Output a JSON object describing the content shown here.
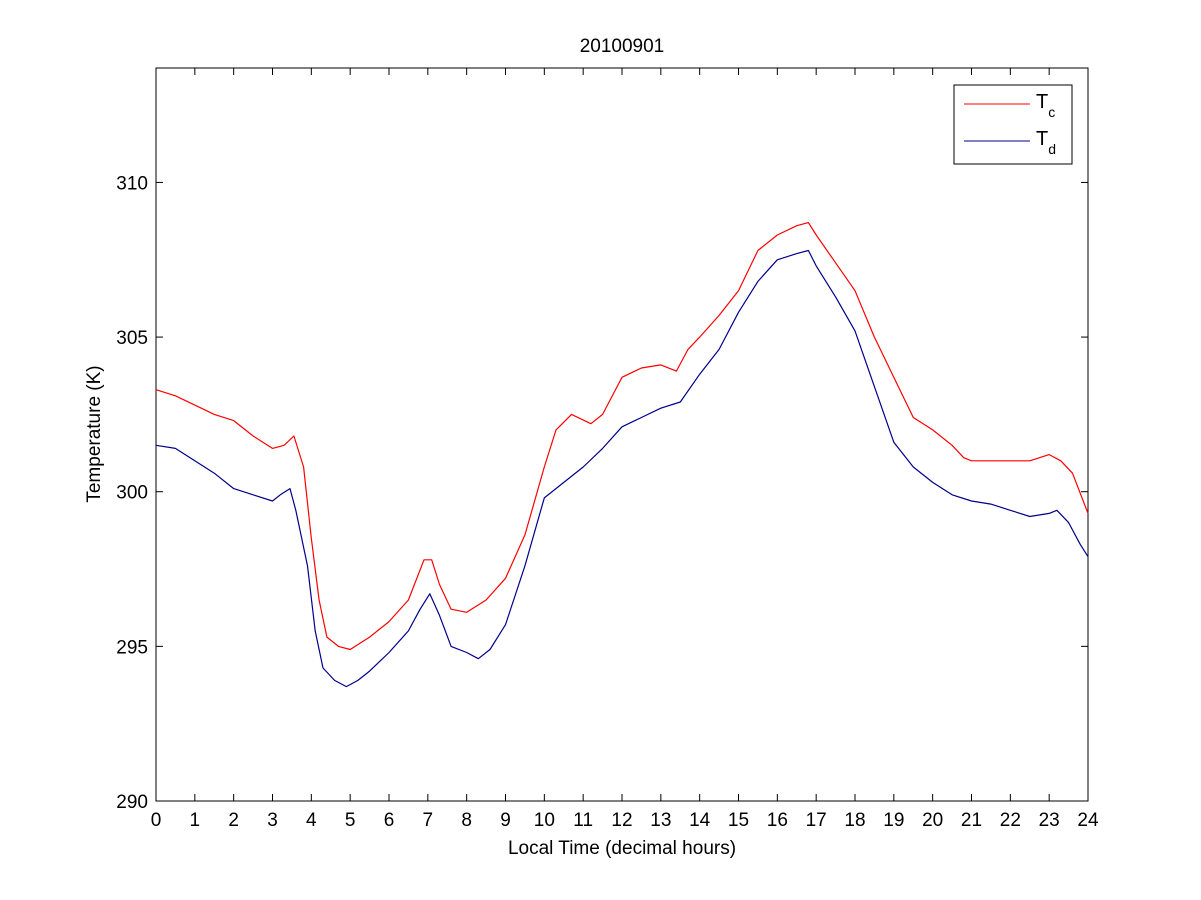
{
  "chart_data": {
    "type": "line",
    "title": "20100901",
    "xlabel": "Local Time (decimal hours)",
    "ylabel": "Temperature (K)",
    "xlim": [
      0,
      24
    ],
    "ylim": [
      290,
      313.7
    ],
    "xticks": [
      "0",
      "1",
      "2",
      "3",
      "4",
      "5",
      "6",
      "7",
      "8",
      "9",
      "10",
      "11",
      "12",
      "13",
      "14",
      "15",
      "16",
      "17",
      "18",
      "19",
      "20",
      "21",
      "22",
      "23",
      "24"
    ],
    "yticks": [
      "290",
      "295",
      "300",
      "305",
      "310"
    ],
    "grid": false,
    "legend": "top-right",
    "series": [
      {
        "name": "T",
        "subscript": "c",
        "color": "#ff0000",
        "x": [
          0,
          0.5,
          1,
          1.5,
          2,
          2.5,
          3,
          3.3,
          3.55,
          3.8,
          4.0,
          4.2,
          4.4,
          4.7,
          5.0,
          5.5,
          6.0,
          6.5,
          6.9,
          7.1,
          7.3,
          7.6,
          8.0,
          8.5,
          9.0,
          9.5,
          10.0,
          10.3,
          10.7,
          11.2,
          11.5,
          12.0,
          12.5,
          13.0,
          13.4,
          13.7,
          14.0,
          14.5,
          15.0,
          15.5,
          16.0,
          16.5,
          16.8,
          17.0,
          17.5,
          18.0,
          18.5,
          19.0,
          19.5,
          20.0,
          20.5,
          20.8,
          21.0,
          21.5,
          22.0,
          22.5,
          23.0,
          23.3,
          23.6,
          24.0
        ],
        "values": [
          303.3,
          303.1,
          302.8,
          302.5,
          302.3,
          301.8,
          301.4,
          301.5,
          301.8,
          300.8,
          298.5,
          296.5,
          295.3,
          295.0,
          294.9,
          295.3,
          295.8,
          296.5,
          297.8,
          297.8,
          297.0,
          296.2,
          296.1,
          296.5,
          297.2,
          298.6,
          300.8,
          302.0,
          302.5,
          302.2,
          302.5,
          303.7,
          304.0,
          304.1,
          303.9,
          304.6,
          305.0,
          305.7,
          306.5,
          307.8,
          308.3,
          308.6,
          308.7,
          308.3,
          307.4,
          306.5,
          305.0,
          303.7,
          302.4,
          302.0,
          301.5,
          301.1,
          301.0,
          301.0,
          301.0,
          301.0,
          301.2,
          301.0,
          300.6,
          299.3
        ]
      },
      {
        "name": "T",
        "subscript": "d",
        "color": "#00008b",
        "x": [
          0,
          0.5,
          1,
          1.5,
          2,
          2.5,
          3,
          3.2,
          3.45,
          3.6,
          3.9,
          4.1,
          4.3,
          4.6,
          4.9,
          5.2,
          5.5,
          6.0,
          6.5,
          6.8,
          7.05,
          7.3,
          7.6,
          8.0,
          8.3,
          8.6,
          9.0,
          9.5,
          10.0,
          10.5,
          11.0,
          11.5,
          12.0,
          12.5,
          13.0,
          13.5,
          14.0,
          14.5,
          15.0,
          15.5,
          16.0,
          16.5,
          16.8,
          17.0,
          17.5,
          18.0,
          18.5,
          19.0,
          19.5,
          20.0,
          20.5,
          21.0,
          21.5,
          22.0,
          22.5,
          23.0,
          23.2,
          23.5,
          23.8,
          24.0
        ],
        "values": [
          301.5,
          301.4,
          301.0,
          300.6,
          300.1,
          299.9,
          299.7,
          299.9,
          300.1,
          299.4,
          297.6,
          295.5,
          294.3,
          293.9,
          293.7,
          293.9,
          294.2,
          294.8,
          295.5,
          296.2,
          296.7,
          296.0,
          295.0,
          294.8,
          294.6,
          294.9,
          295.7,
          297.6,
          299.8,
          300.3,
          300.8,
          301.4,
          302.1,
          302.4,
          302.7,
          302.9,
          303.8,
          304.6,
          305.8,
          306.8,
          307.5,
          307.7,
          307.8,
          307.3,
          306.3,
          305.2,
          303.4,
          301.6,
          300.8,
          300.3,
          299.9,
          299.7,
          299.6,
          299.4,
          299.2,
          299.3,
          299.4,
          299.0,
          298.3,
          297.9
        ]
      }
    ]
  }
}
